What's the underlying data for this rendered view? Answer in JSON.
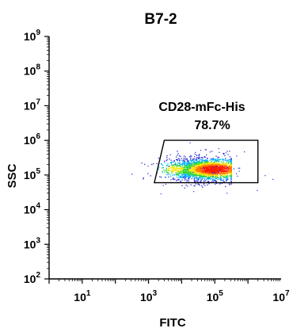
{
  "chart_data": {
    "type": "scatter",
    "subtype": "flow-cytometry-density-dot-plot",
    "title": "B7-2",
    "xlabel": "FITC",
    "ylabel": "SSC",
    "x_scale": "log",
    "y_scale": "log",
    "xlim": [
      1,
      10000000
    ],
    "ylim": [
      100,
      1000000000
    ],
    "x_ticks": [
      {
        "base": "10",
        "exp": "1",
        "value": 10
      },
      {
        "base": "10",
        "exp": "3",
        "value": 1000
      },
      {
        "base": "10",
        "exp": "5",
        "value": 100000
      },
      {
        "base": "10",
        "exp": "7",
        "value": 10000000
      }
    ],
    "y_ticks": [
      {
        "base": "10",
        "exp": "2",
        "value": 100
      },
      {
        "base": "10",
        "exp": "3",
        "value": 1000
      },
      {
        "base": "10",
        "exp": "4",
        "value": 10000
      },
      {
        "base": "10",
        "exp": "5",
        "value": 100000
      },
      {
        "base": "10",
        "exp": "6",
        "value": 1000000
      },
      {
        "base": "10",
        "exp": "7",
        "value": 10000000
      },
      {
        "base": "10",
        "exp": "8",
        "value": 100000000
      },
      {
        "base": "10",
        "exp": "9",
        "value": 1000000000
      }
    ],
    "gate": {
      "label": "CD28-mFc-His",
      "percent": "78.7%",
      "vertices": [
        [
          3000,
          1000000
        ],
        [
          2000000,
          1000000
        ],
        [
          2000000,
          60000
        ],
        [
          1500,
          60000
        ]
      ]
    },
    "population": {
      "center": [
        50000,
        150000
      ],
      "x_range": [
        300,
        300000
      ],
      "y_range": [
        40000,
        500000
      ],
      "density_peak": [
        100000,
        150000
      ]
    },
    "grid": false,
    "legend": "none",
    "colors": {
      "low_density": "#2b2bd6",
      "mid_low": "#00b4ff",
      "mid": "#31d63a",
      "mid_high": "#ffe600",
      "high": "#ff7a00",
      "peak": "#ff1a00",
      "axis": "#000000"
    }
  }
}
